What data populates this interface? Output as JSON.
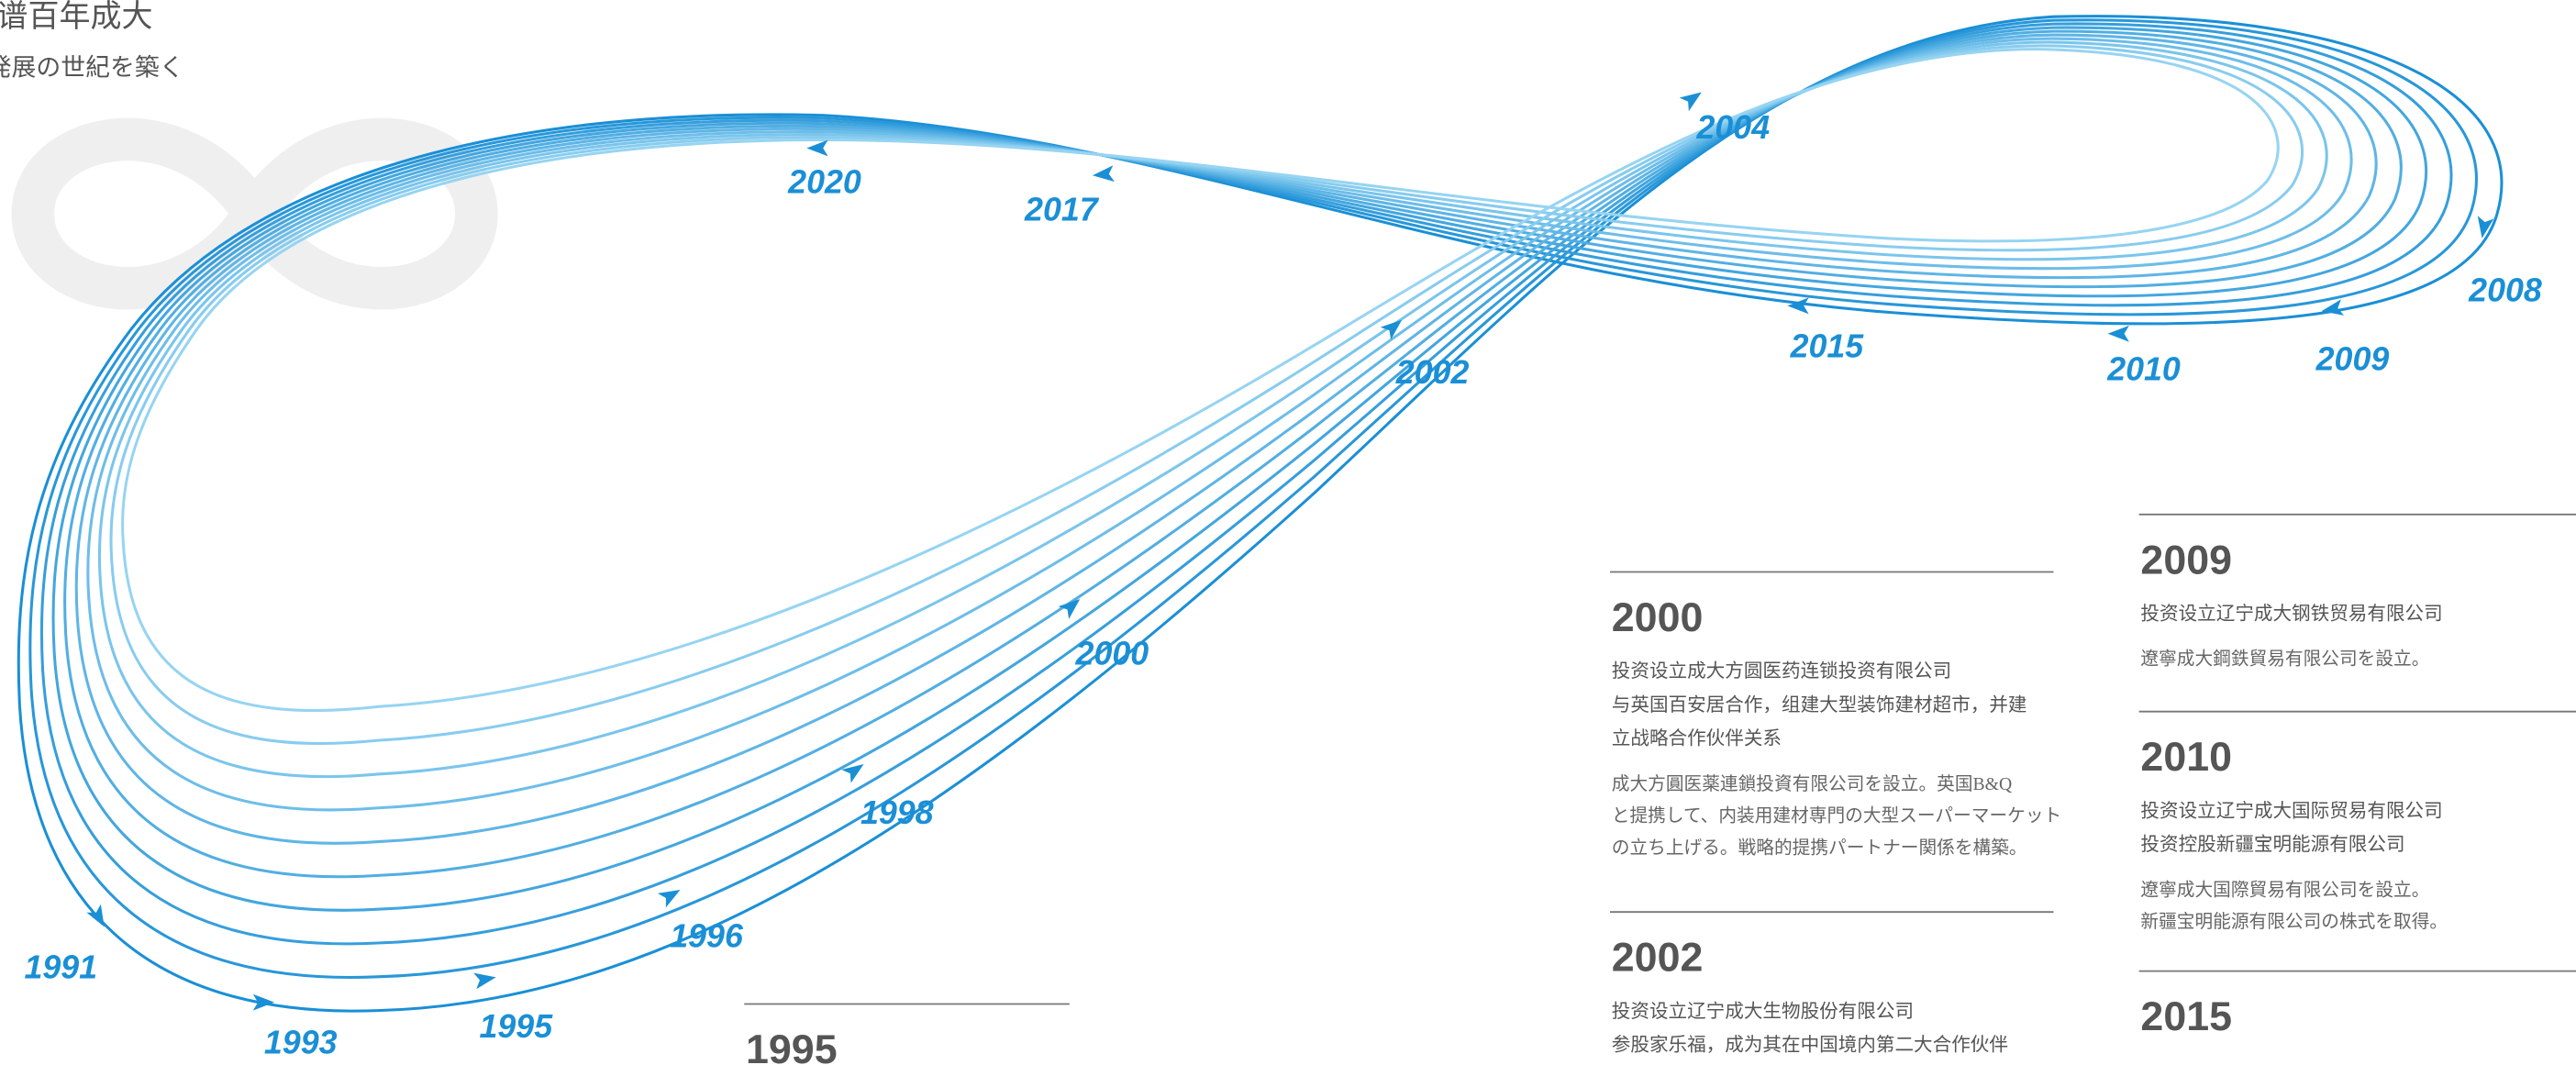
{
  "header": {
    "title": "谱百年成大",
    "subtitle": "発展の世紀を築く"
  },
  "timeline_labels": [
    "1991",
    "1993",
    "1995",
    "1996",
    "1998",
    "2000",
    "2002",
    "2004",
    "2008",
    "2009",
    "2010",
    "2015",
    "2017",
    "2020"
  ],
  "cards": [
    {
      "year": "1995",
      "cn": [],
      "jp": []
    },
    {
      "year": "2000",
      "cn": [
        "投资设立成大方圆医药连锁投资有限公司",
        "与英国百安居合作，组建大型装饰建材超市，并建",
        "立战略合作伙伴关系"
      ],
      "jp": [
        "成大方圓医薬連鎖投資有限公司を設立。英国B&Q",
        "と提携して、内装用建材専門の大型スーパーマーケット",
        "の立ち上げる。戦略的提携パートナー関係を構築。"
      ]
    },
    {
      "year": "2002",
      "cn": [
        "投资设立辽宁成大生物股份有限公司",
        "参股家乐福，成为其在中国境内第二大合作伙伴"
      ],
      "jp": []
    },
    {
      "year": "2009",
      "cn": [
        "投资设立辽宁成大钢铁贸易有限公司"
      ],
      "jp": [
        "遼寧成大鋼鉄貿易有限公司を設立。"
      ]
    },
    {
      "year": "2010",
      "cn": [
        "投资设立辽宁成大国际贸易有限公司",
        "投资控股新疆宝明能源有限公司"
      ],
      "jp": [
        "遼寧成大国際貿易有限公司を設立。",
        "新疆宝明能源有限公司の株式を取得。"
      ]
    },
    {
      "year": "2015",
      "cn": [],
      "jp": []
    }
  ]
}
